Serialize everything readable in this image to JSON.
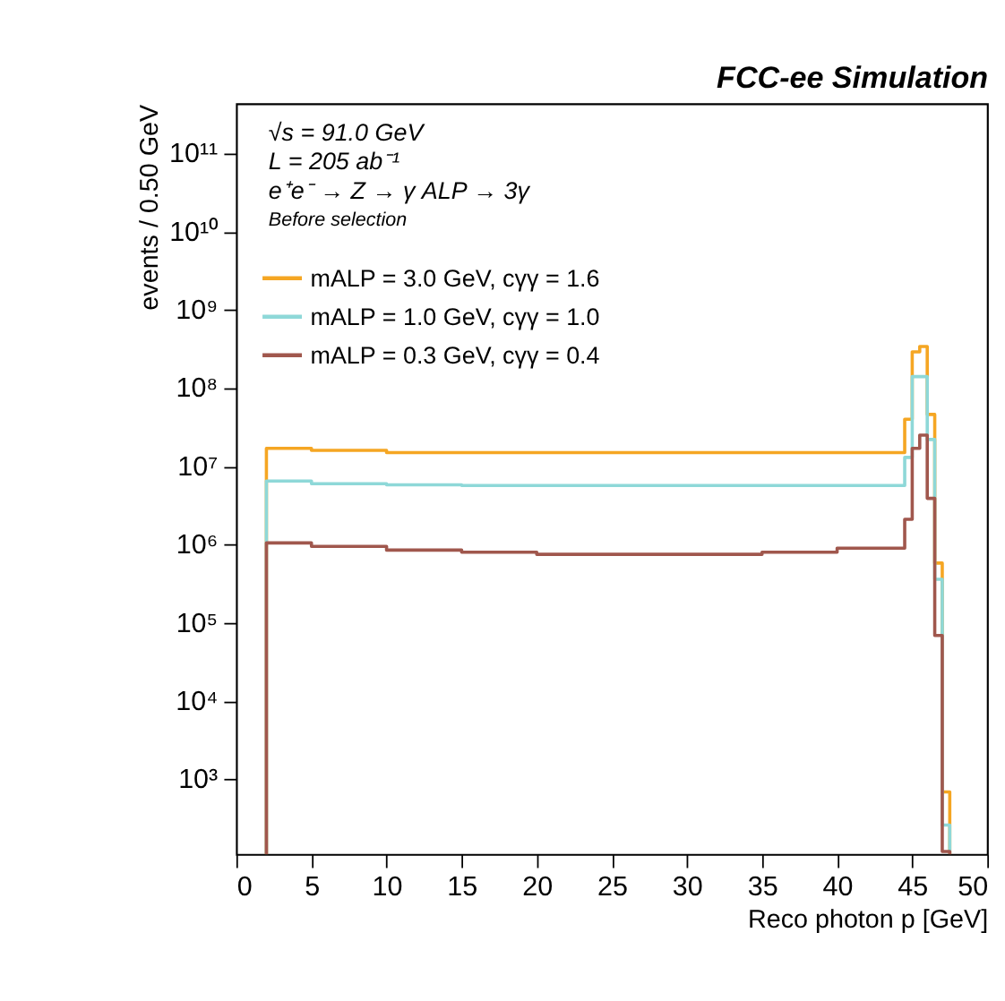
{
  "chart_data": {
    "type": "histogram",
    "title": "FCC-ee Simulation",
    "xlabel": "Reco photon p [GeV]",
    "ylabel": "events / 0.50 GeV",
    "annotations": [
      "√s = 91.0 GeV",
      "L = 205 ab⁻¹",
      "e⁺e⁻  → Z  →  γ ALP  → 3γ",
      "Before selection"
    ],
    "bins": [
      2,
      5,
      10,
      15,
      20,
      25,
      30,
      35,
      40,
      44.5,
      45,
      45.5,
      46,
      46.5,
      47,
      47.5
    ],
    "series": [
      {
        "name": "mALP = 3.0 GeV, cγγ = 1.6",
        "color": "#f5a623",
        "values": [
          17000000.0,
          16000000.0,
          15000000.0,
          15000000.0,
          15000000.0,
          15000000.0,
          15000000.0,
          15000000.0,
          15000000.0,
          40000000.0,
          290000000.0,
          340000000.0,
          46000000.0,
          580000.0,
          690
        ]
      },
      {
        "name": "mALP = 1.0 GeV, cγγ = 1.0",
        "color": "#8ed8d8",
        "values": [
          6500000.0,
          6000000.0,
          5800000.0,
          5700000.0,
          5700000.0,
          5700000.0,
          5700000.0,
          5700000.0,
          5700000.0,
          13000000.0,
          140000000.0,
          140000000.0,
          22000000.0,
          360000.0,
          260
        ]
      },
      {
        "name": "mALP = 0.3 GeV, cγγ = 0.4",
        "color": "#a0574d",
        "values": [
          1050000.0,
          950000.0,
          850000.0,
          800000.0,
          750000.0,
          750000.0,
          750000.0,
          800000.0,
          900000.0,
          2100000.0,
          17000000.0,
          25000000.0,
          3900000.0,
          69000.0,
          120
        ]
      }
    ],
    "xlim": [
      0,
      50
    ],
    "xticks": [
      0,
      5,
      10,
      15,
      20,
      25,
      30,
      35,
      40,
      45,
      50
    ],
    "ylim": [
      110,
      430000000000.0
    ],
    "log": true,
    "yticks": [
      {
        "value": 1000,
        "label": "10³"
      },
      {
        "value": 10000,
        "label": "10⁴"
      },
      {
        "value": 100000,
        "label": "10⁵"
      },
      {
        "value": 1000000,
        "label": "10⁶"
      },
      {
        "value": 10000000,
        "label": "10⁷"
      },
      {
        "value": 100000000,
        "label": "10⁸"
      },
      {
        "value": 1000000000,
        "label": "10⁹"
      },
      {
        "value": 10000000000,
        "label": "10¹⁰"
      },
      {
        "value": 100000000000,
        "label": "10¹¹"
      }
    ],
    "legend": "top left",
    "grid": false
  }
}
